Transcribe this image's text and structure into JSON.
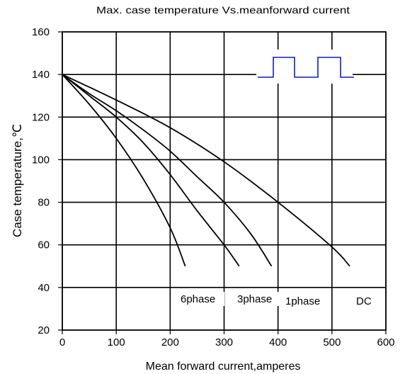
{
  "chart_data": {
    "type": "line",
    "title": "Max. case temperature Vs.meanforward current",
    "xlabel": "Mean forward current,amperes",
    "ylabel": "Case temperature,℃",
    "xlim": [
      0,
      600
    ],
    "ylim": [
      20,
      160
    ],
    "x_ticks": [
      "0",
      "100",
      "200",
      "300",
      "400",
      "500",
      "600"
    ],
    "y_ticks": [
      "20",
      "40",
      "60",
      "80",
      "100",
      "120",
      "140",
      "160"
    ],
    "grid": true,
    "series": [
      {
        "name": "6phase",
        "x": [
          0,
          50,
          100,
          150,
          200,
          228
        ],
        "y": [
          140,
          126,
          110,
          91,
          68,
          50
        ]
      },
      {
        "name": "3phase",
        "x": [
          0,
          50,
          100,
          150,
          200,
          250,
          300,
          328
        ],
        "y": [
          140,
          130,
          120,
          108,
          93,
          76,
          60,
          50
        ]
      },
      {
        "name": "1phase",
        "x": [
          0,
          50,
          100,
          150,
          200,
          250,
          300,
          350,
          388
        ],
        "y": [
          140,
          131,
          123,
          114,
          104,
          92,
          80,
          65,
          50
        ]
      },
      {
        "name": "DC",
        "x": [
          0,
          100,
          200,
          300,
          400,
          500,
          533
        ],
        "y": [
          140,
          128,
          115,
          99,
          80,
          59,
          50
        ]
      }
    ],
    "series_label_color": "#000000",
    "waveform_color": "#0b1fbf",
    "waveform_description_icon": "square-wave-icon"
  }
}
